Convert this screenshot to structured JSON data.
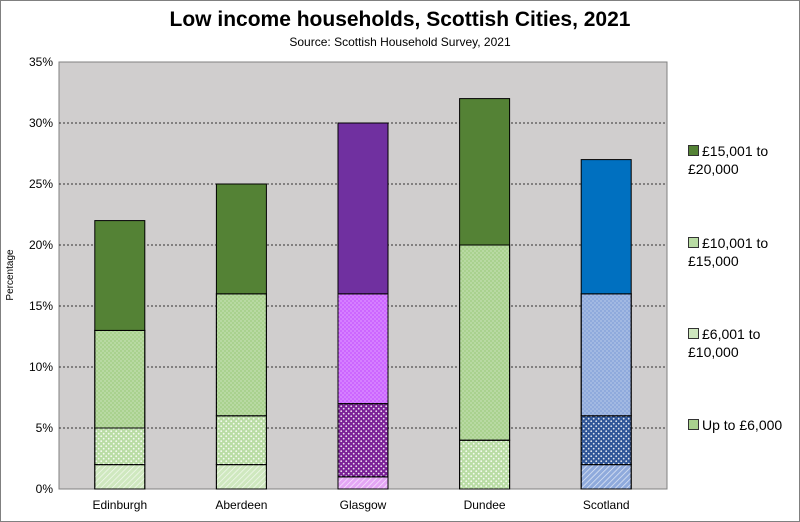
{
  "chart_data": {
    "type": "bar",
    "stacked": true,
    "title": "Low income households, Scottish Cities, 2021",
    "subtitle": "Source: Scottish Household Survey, 2021",
    "xlabel": "",
    "ylabel": "Percentage",
    "ylim": [
      0,
      35
    ],
    "yticks": [
      "0%",
      "5%",
      "10%",
      "15%",
      "20%",
      "25%",
      "30%",
      "35%"
    ],
    "grid": true,
    "legend_position": "right",
    "categories": [
      "Edinburgh",
      "Aberdeen",
      "Glasgow",
      "Dundee",
      "Scotland"
    ],
    "series": [
      {
        "name": "Up to £6,000",
        "values": [
          2,
          2,
          1,
          0,
          2
        ]
      },
      {
        "name": "£6,001 to £10,000",
        "values": [
          3,
          4,
          6,
          4,
          4
        ]
      },
      {
        "name": "£10,001 to £15,000",
        "values": [
          8,
          10,
          9,
          16,
          10
        ]
      },
      {
        "name": "£15,001 to £20,000",
        "values": [
          9,
          9,
          14,
          12,
          11
        ]
      }
    ],
    "colors": [
      [
        "#cfe8bf",
        "#b9dca4",
        "#a9d18e",
        "#548235"
      ],
      [
        "#cfe8bf",
        "#b9dca4",
        "#a9d18e",
        "#548235"
      ],
      [
        "#e4a6f5",
        "#7a2096",
        "#cc66ff",
        "#7030a0"
      ],
      [
        "#cfe8bf",
        "#b9dca4",
        "#a9d18e",
        "#548235"
      ],
      [
        "#8faadc",
        "#2f5597",
        "#8faadc",
        "#0070c0"
      ]
    ],
    "legend": [
      {
        "label": "£15,001 to £20,000",
        "color": "#548235"
      },
      {
        "label": "£10,001 to £15,000",
        "color": "#b9dca4"
      },
      {
        "label": "£6,001 to £10,000",
        "color": "#cfe8bf"
      },
      {
        "label": "Up to £6,000",
        "color": "#a9d18e"
      }
    ]
  }
}
